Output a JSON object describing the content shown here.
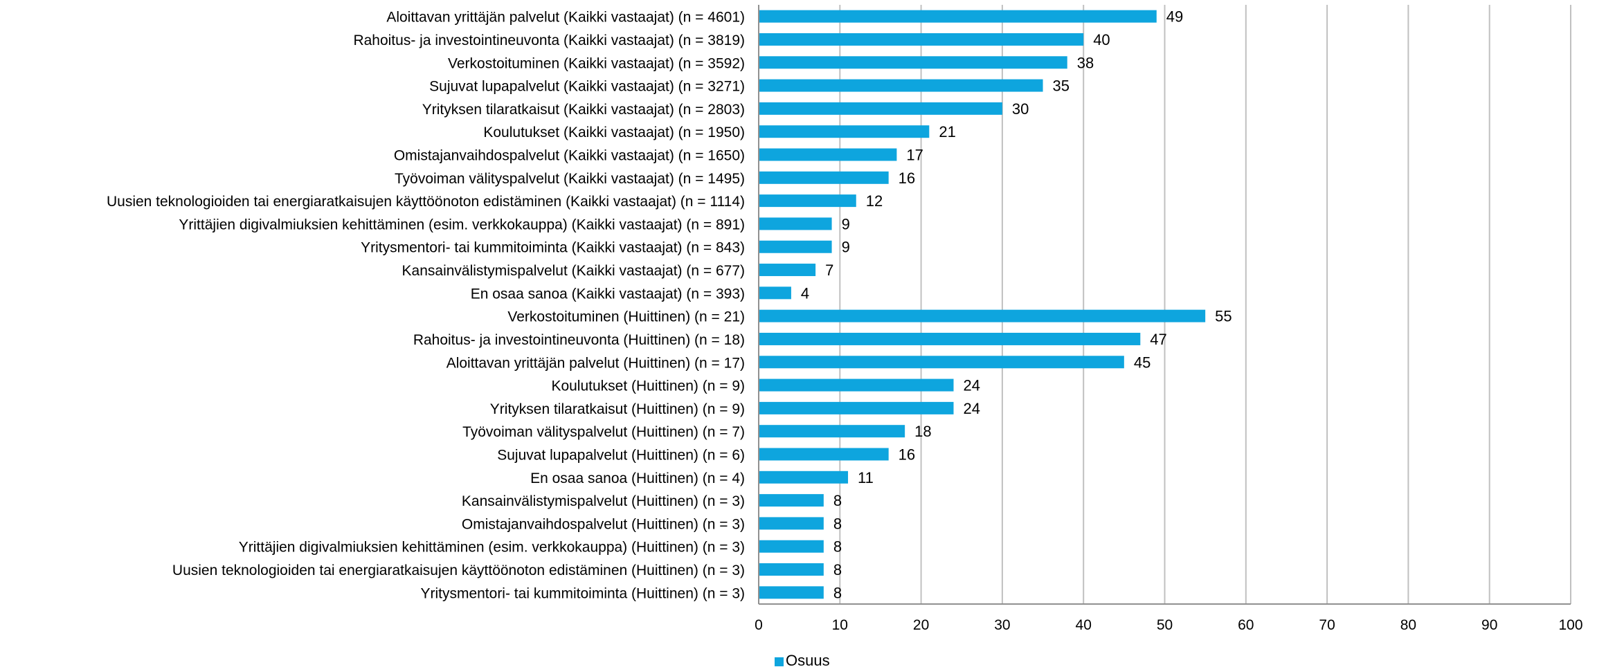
{
  "chart_data": {
    "type": "bar",
    "orientation": "horizontal",
    "categories": [
      "Aloittavan yrittäjän palvelut (Kaikki vastaajat) (n = 4601)",
      "Rahoitus- ja investointineuvonta (Kaikki vastaajat) (n = 3819)",
      "Verkostoituminen (Kaikki vastaajat) (n = 3592)",
      "Sujuvat lupapalvelut (Kaikki vastaajat) (n = 3271)",
      "Yrityksen tilaratkaisut (Kaikki vastaajat) (n = 2803)",
      "Koulutukset (Kaikki vastaajat) (n = 1950)",
      "Omistajanvaihdospalvelut (Kaikki vastaajat) (n = 1650)",
      "Työvoiman välityspalvelut (Kaikki vastaajat) (n = 1495)",
      "Uusien teknologioiden tai energiaratkaisujen käyttöönoton edistäminen (Kaikki vastaajat) (n = 1114)",
      "Yrittäjien digivalmiuksien kehittäminen (esim. verkkokauppa) (Kaikki vastaajat) (n = 891)",
      "Yritysmentori- tai kummitoiminta (Kaikki vastaajat) (n = 843)",
      "Kansainvälistymispalvelut (Kaikki vastaajat) (n = 677)",
      "En osaa sanoa (Kaikki vastaajat) (n = 393)",
      "Verkostoituminen (Huittinen) (n = 21)",
      "Rahoitus- ja investointineuvonta (Huittinen) (n = 18)",
      "Aloittavan yrittäjän palvelut (Huittinen) (n = 17)",
      "Koulutukset (Huittinen) (n = 9)",
      "Yrityksen tilaratkaisut (Huittinen) (n = 9)",
      "Työvoiman välityspalvelut (Huittinen) (n = 7)",
      "Sujuvat lupapalvelut (Huittinen) (n = 6)",
      "En osaa sanoa (Huittinen) (n = 4)",
      "Kansainvälistymispalvelut (Huittinen) (n = 3)",
      "Omistajanvaihdospalvelut (Huittinen) (n = 3)",
      "Yrittäjien digivalmiuksien kehittäminen (esim. verkkokauppa) (Huittinen) (n = 3)",
      "Uusien teknologioiden tai energiaratkaisujen käyttöönoton edistäminen (Huittinen) (n = 3)",
      "Yritysmentori- tai kummitoiminta (Huittinen) (n = 3)"
    ],
    "series": [
      {
        "name": "Osuus",
        "color": "#0EA5DE",
        "values": [
          49,
          40,
          38,
          35,
          30,
          21,
          17,
          16,
          12,
          9,
          9,
          7,
          4,
          55,
          47,
          45,
          24,
          24,
          18,
          16,
          11,
          8,
          8,
          8,
          8,
          8
        ]
      }
    ],
    "xlim": [
      0,
      100
    ],
    "xticks": [
      0,
      10,
      20,
      30,
      40,
      50,
      60,
      70,
      80,
      90,
      100
    ],
    "grid": true,
    "gridline_color": "#C0C0C0",
    "legend_position": "bottom-left",
    "data_labels": true
  }
}
